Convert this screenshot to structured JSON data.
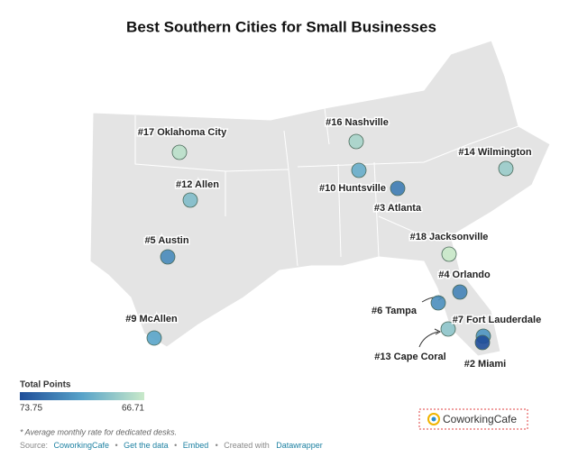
{
  "title": "Best Southern Cities for Small Businesses",
  "legend": {
    "title": "Total Points",
    "ticks": [
      73.75,
      66.71
    ],
    "colors": [
      "#1f4e99",
      "#58a3c9",
      "#c9e9c9"
    ]
  },
  "cities": [
    {
      "label": "#17 Oklahoma City",
      "points": 67.2
    },
    {
      "label": "#12 Allen",
      "points": 69.0
    },
    {
      "label": "#5 Austin",
      "points": 71.3
    },
    {
      "label": "#9 McAllen",
      "points": 70.2
    },
    {
      "label": "#16 Nashville",
      "points": 67.8
    },
    {
      "label": "#10 Huntsville",
      "points": 69.8
    },
    {
      "label": "#3 Atlanta",
      "points": 71.9
    },
    {
      "label": "#14 Wilmington",
      "points": 68.2
    },
    {
      "label": "#18 Jacksonville",
      "points": 66.71
    },
    {
      "label": "#4 Orlando",
      "points": 71.6
    },
    {
      "label": "#6 Tampa",
      "points": 71.1
    },
    {
      "label": "#7 Fort Lauderdale",
      "points": 70.9
    },
    {
      "label": "#13 Cape Coral",
      "points": 68.6
    },
    {
      "label": "#2 Miami",
      "points": 73.75
    }
  ],
  "note": "* Average monthly rate for dedicated desks.",
  "source": {
    "prefix": "Source:",
    "name": "CoworkingCafe",
    "data": "Get the data",
    "embed": "Embed",
    "created": "Created with",
    "tool": "Datawrapper"
  },
  "logo": "CoworkingCafe"
}
